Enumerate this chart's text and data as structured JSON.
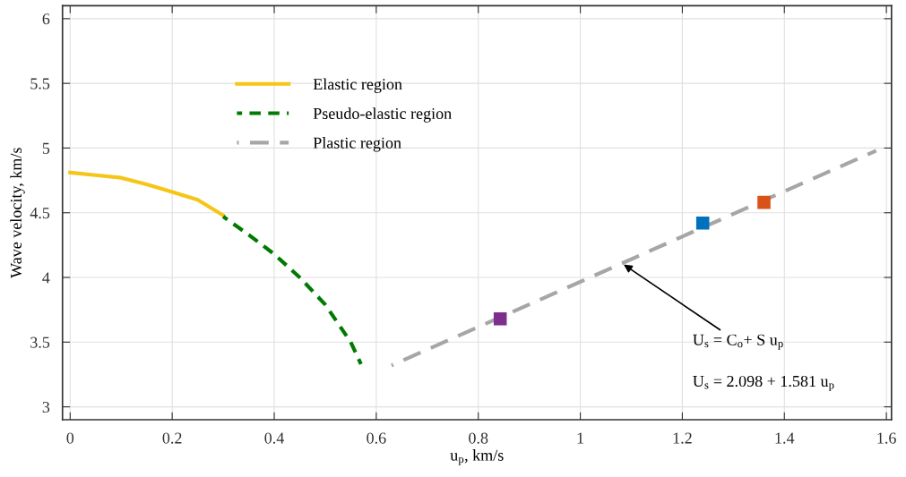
{
  "chart_data": {
    "type": "line",
    "xlabel": "u$_{p}$, km/s",
    "ylabel": "Wave velocity, km/s",
    "xlim": [
      -0.015,
      1.61
    ],
    "ylim": [
      2.9,
      6.1
    ],
    "xticks": [
      0,
      0.2,
      0.4,
      0.6,
      0.8,
      1,
      1.2,
      1.4,
      1.6
    ],
    "yticks": [
      3,
      3.5,
      4,
      4.5,
      5,
      5.5,
      6
    ],
    "grid": true,
    "legend": "top",
    "series": [
      {
        "name": "Elastic region",
        "color": "#f5c518",
        "line_style": "solid",
        "x": [
          0,
          0.05,
          0.1,
          0.15,
          0.2,
          0.25,
          0.3
        ],
        "values": [
          4.81,
          4.79,
          4.77,
          4.72,
          4.66,
          4.6,
          4.48
        ]
      },
      {
        "name": "Pseudo-elastic region",
        "color": "#007a00",
        "line_style": "dashed",
        "x": [
          0.3,
          0.35,
          0.4,
          0.45,
          0.5,
          0.55,
          0.57
        ],
        "values": [
          4.47,
          4.33,
          4.18,
          4.0,
          3.79,
          3.5,
          3.33
        ]
      },
      {
        "name": "Plastic region",
        "color": "#a6a6a6",
        "line_style": "dashed",
        "x": [
          0.63,
          1.58
        ],
        "values": [
          3.32,
          4.98
        ]
      },
      {
        "type": "scatter",
        "marker": "square",
        "x": [
          0.843,
          1.24,
          1.36
        ],
        "values": [
          3.68,
          4.42,
          4.58
        ],
        "colors": [
          "#7e2f8e",
          "#0072bd",
          "#d95319"
        ]
      }
    ],
    "annotations": [
      {
        "text": "U$_{s}$ = C$_{o}$+ S u$_{p}$",
        "x": 1.085,
        "y": 4.1
      },
      "U$_{s}$ = 2.098 + 1.581 u$_{p}$"
    ]
  }
}
